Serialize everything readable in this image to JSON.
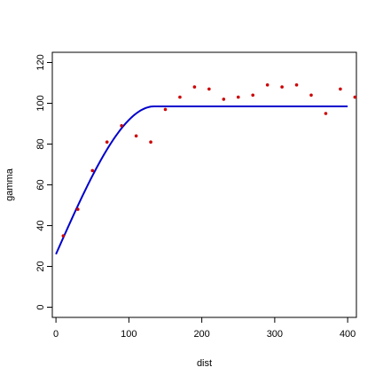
{
  "chart_data": {
    "type": "scatter",
    "xlabel": "dist",
    "ylabel": "gamma",
    "xlim": [
      -5,
      412
    ],
    "ylim": [
      -5,
      125
    ],
    "xticks": [
      0,
      100,
      200,
      300,
      400
    ],
    "yticks": [
      0,
      20,
      40,
      60,
      80,
      100,
      120
    ],
    "grid": false,
    "colors": {
      "points": "#cc0000",
      "model_line": "#0000cc",
      "axes": "#000000"
    },
    "points": {
      "x": [
        10,
        30,
        50,
        70,
        90,
        110,
        130,
        150,
        170,
        190,
        210,
        230,
        250,
        270,
        290,
        310,
        330,
        350,
        370,
        390,
        410
      ],
      "y": [
        35,
        48,
        67,
        81,
        89,
        84,
        81,
        97,
        103,
        108,
        107,
        102,
        103,
        104,
        109,
        108,
        109,
        104,
        95,
        107,
        103
      ]
    },
    "model_line": {
      "kind": "spherical",
      "nugget": 26,
      "sill": 98.5,
      "range": 135,
      "x_start": 0,
      "x_end": 400
    }
  }
}
